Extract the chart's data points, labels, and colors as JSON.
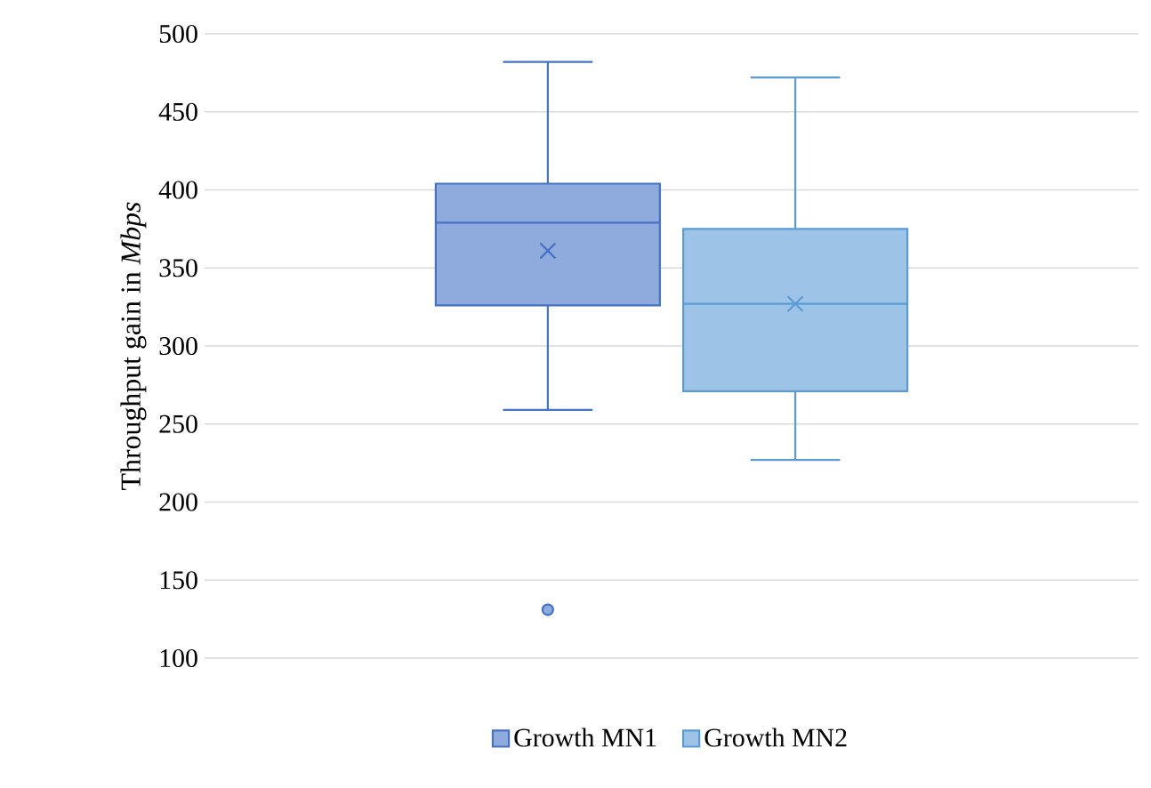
{
  "chart_data": {
    "type": "box",
    "ylabel": "Throughput gain in *Mbps*",
    "categories": [
      null
    ],
    "ylim": [
      100,
      500
    ],
    "yticks": [
      100,
      150,
      200,
      250,
      300,
      350,
      400,
      450,
      500
    ],
    "grid": "y",
    "legend": "bottom",
    "marker": "cross",
    "series": [
      {
        "name": "Growth MN1",
        "color": "#4472c4",
        "boxes": [
          {
            "low": 259,
            "q1": 326,
            "median": 379,
            "q3": 404,
            "high": 482,
            "mean": 361,
            "outliers": [
              131
            ]
          }
        ]
      },
      {
        "name": "Growth MN2",
        "color": "#5b9bd5",
        "boxes": [
          {
            "low": 227,
            "q1": 271,
            "median": 327,
            "q3": 375,
            "high": 472,
            "mean": 327
          }
        ]
      }
    ]
  }
}
